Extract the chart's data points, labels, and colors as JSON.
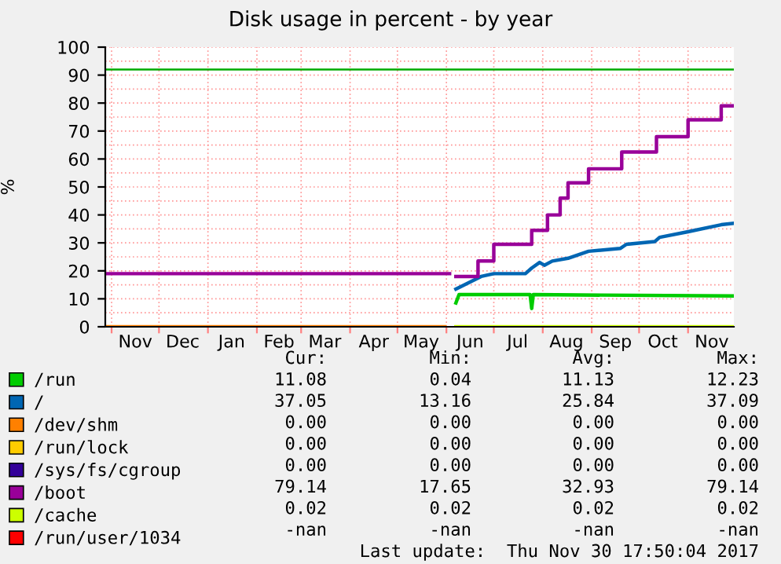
{
  "chart_data": {
    "type": "line",
    "title": "Disk usage in percent - by year",
    "ylabel": "%",
    "xlim": [
      "2016-10-28",
      "2017-11-30"
    ],
    "ylim": [
      0,
      100
    ],
    "yticks": [
      0,
      10,
      20,
      30,
      40,
      50,
      60,
      70,
      80,
      90,
      100
    ],
    "xticks": [
      {
        "value": "2016-11-01",
        "label": null
      },
      {
        "value": "2016-11-16",
        "label": "Nov"
      },
      {
        "value": "2016-12-01",
        "label": null
      },
      {
        "value": "2016-12-16",
        "label": "Dec"
      },
      {
        "value": "2017-01-01",
        "label": null
      },
      {
        "value": "2017-01-16",
        "label": "Jan"
      },
      {
        "value": "2017-02-01",
        "label": null
      },
      {
        "value": "2017-02-15",
        "label": "Feb"
      },
      {
        "value": "2017-03-01",
        "label": null
      },
      {
        "value": "2017-03-16",
        "label": "Mar"
      },
      {
        "value": "2017-04-01",
        "label": null
      },
      {
        "value": "2017-04-16",
        "label": "Apr"
      },
      {
        "value": "2017-05-01",
        "label": null
      },
      {
        "value": "2017-05-16",
        "label": "May"
      },
      {
        "value": "2017-06-01",
        "label": null
      },
      {
        "value": "2017-06-16",
        "label": "Jun"
      },
      {
        "value": "2017-07-01",
        "label": null
      },
      {
        "value": "2017-07-16",
        "label": "Jul"
      },
      {
        "value": "2017-08-01",
        "label": null
      },
      {
        "value": "2017-08-16",
        "label": "Aug"
      },
      {
        "value": "2017-09-01",
        "label": null
      },
      {
        "value": "2017-09-16",
        "label": "Sep"
      },
      {
        "value": "2017-10-01",
        "label": null
      },
      {
        "value": "2017-10-16",
        "label": "Oct"
      },
      {
        "value": "2017-11-01",
        "label": null
      },
      {
        "value": "2017-11-16",
        "label": "Nov"
      }
    ],
    "grid": true,
    "legend": "bottom",
    "ref_lines": [
      {
        "axis": "y",
        "value": 92,
        "label": null,
        "color": "#00aa00"
      }
    ],
    "series": [
      {
        "name": "/run",
        "color": "#00cc00",
        "x": [
          "2017-06-07",
          "2017-06-09",
          "2017-07-24",
          "2017-07-25",
          "2017-07-26",
          "2017-11-30"
        ],
        "values": [
          8.5,
          11.5,
          11.5,
          6.5,
          11.5,
          11
        ]
      },
      {
        "name": "/",
        "color": "#0066b3",
        "x": [
          "2017-06-07",
          "2017-06-16",
          "2017-06-23",
          "2017-07-01",
          "2017-07-21",
          "2017-07-25",
          "2017-07-30",
          "2017-08-02",
          "2017-08-07",
          "2017-08-17",
          "2017-08-30",
          "2017-09-19",
          "2017-09-23",
          "2017-10-11",
          "2017-10-14",
          "2017-11-01",
          "2017-11-22",
          "2017-11-30"
        ],
        "values": [
          13.5,
          16,
          18,
          19,
          19,
          21,
          23,
          22,
          23.5,
          24.5,
          27,
          28,
          29.5,
          30.5,
          32,
          34,
          36.5,
          37
        ]
      },
      {
        "name": "/dev/shm",
        "color": "#ff8000",
        "x": [
          "2016-10-28",
          "2017-05-31"
        ],
        "values": [
          0,
          0
        ]
      },
      {
        "name": "/run/lock",
        "color": "#ffcc00"
      },
      {
        "name": "/sys/fs/cgroup",
        "color": "#330099"
      },
      {
        "name": "/boot",
        "color": "#990099",
        "type": "step",
        "x": [
          "2016-10-28",
          "2017-05-31",
          "2017-06-03",
          "2017-06-07",
          "2017-06-21",
          "2017-07-01",
          "2017-07-25",
          "2017-08-04",
          "2017-08-12",
          "2017-08-17",
          "2017-08-30",
          "2017-09-20",
          "2017-10-12",
          "2017-11-01",
          "2017-11-22",
          "2017-11-30"
        ],
        "values": [
          19,
          19,
          null,
          18,
          23.5,
          29.5,
          34.5,
          40,
          46,
          51.5,
          56.5,
          62.5,
          68,
          74,
          79,
          79
        ]
      },
      {
        "name": "/cache",
        "color": "#ccff00",
        "x": [
          "2017-06-07",
          "2017-11-30"
        ],
        "values": [
          0,
          0
        ]
      },
      {
        "name": "/run/user/1034",
        "color": "#ff0000"
      }
    ],
    "annotations": [
      "Cur:",
      "Min:",
      "Avg:",
      "Max:",
      "11.08",
      "0.04",
      "11.13",
      "12.23",
      "37.05",
      "13.16",
      "25.84",
      "37.09",
      "0.00",
      "0.00",
      "0.00",
      "0.00",
      "0.00",
      "0.00",
      "0.00",
      "0.00",
      "0.00",
      "0.00",
      "0.00",
      "0.00",
      "79.14",
      "17.65",
      "32.93",
      "79.14",
      "0.02",
      "0.02",
      "0.02",
      "0.02",
      "-nan",
      "-nan",
      "-nan",
      "-nan",
      "Last update:  Thu Nov 30 17:50:04 2017"
    ]
  }
}
